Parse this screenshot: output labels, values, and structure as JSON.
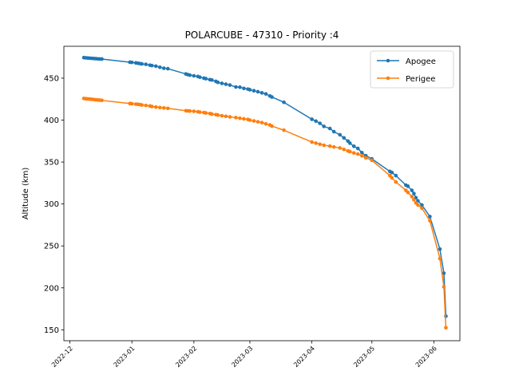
{
  "chart_data": {
    "type": "line",
    "title": "POLARCUBE - 47310 - Priority :4",
    "xlabel": "",
    "ylabel": "Altitude (km)",
    "xlim": [
      "2022-11-28",
      "2023-06-14"
    ],
    "ylim": [
      137,
      488
    ],
    "x_ticks": [
      "2022-12",
      "2023-01",
      "2023-02",
      "2023-03",
      "2023-04",
      "2023-05",
      "2023-06"
    ],
    "y_ticks": [
      150,
      200,
      250,
      300,
      350,
      400,
      450
    ],
    "grid": false,
    "legend_position": "top-right",
    "colors": {
      "Apogee": "#1f77b4",
      "Perigee": "#ff7f0e"
    },
    "series": [
      {
        "name": "Apogee",
        "points": [
          [
            "2022-12-08",
            474.5
          ],
          [
            "2022-12-09",
            474.2
          ],
          [
            "2022-12-10",
            474.0
          ],
          [
            "2022-12-11",
            473.8
          ],
          [
            "2022-12-12",
            473.6
          ],
          [
            "2022-12-13",
            473.4
          ],
          [
            "2022-12-14",
            473.2
          ],
          [
            "2022-12-15",
            473.0
          ],
          [
            "2022-12-16",
            472.9
          ],
          [
            "2022-12-17",
            472.8
          ],
          [
            "2022-12-31",
            469.0
          ],
          [
            "2023-01-01",
            468.8
          ],
          [
            "2023-01-03",
            468.2
          ],
          [
            "2023-01-04",
            467.8
          ],
          [
            "2023-01-05",
            467.4
          ],
          [
            "2023-01-06",
            467.0
          ],
          [
            "2023-01-08",
            466.5
          ],
          [
            "2023-01-10",
            465.5
          ],
          [
            "2023-01-11",
            465.0
          ],
          [
            "2023-01-13",
            464.3
          ],
          [
            "2023-01-15",
            463.0
          ],
          [
            "2023-01-17",
            461.8
          ],
          [
            "2023-01-19",
            461.3
          ],
          [
            "2023-01-28",
            455.0
          ],
          [
            "2023-01-29",
            454.2
          ],
          [
            "2023-01-30",
            453.6
          ],
          [
            "2023-02-01",
            452.8
          ],
          [
            "2023-02-03",
            452.0
          ],
          [
            "2023-02-04",
            451.2
          ],
          [
            "2023-02-06",
            450.0
          ],
          [
            "2023-02-07",
            449.4
          ],
          [
            "2023-02-09",
            448.2
          ],
          [
            "2023-02-10",
            447.8
          ],
          [
            "2023-02-12",
            446.2
          ],
          [
            "2023-02-13",
            445.0
          ],
          [
            "2023-02-15",
            443.8
          ],
          [
            "2023-02-17",
            442.8
          ],
          [
            "2023-02-19",
            441.8
          ],
          [
            "2023-02-22",
            439.5
          ],
          [
            "2023-02-24",
            439.2
          ],
          [
            "2023-02-26",
            437.8
          ],
          [
            "2023-02-28",
            437.0
          ],
          [
            "2023-03-01",
            436.2
          ],
          [
            "2023-03-03",
            435.0
          ],
          [
            "2023-03-05",
            433.8
          ],
          [
            "2023-03-07",
            432.5
          ],
          [
            "2023-03-09",
            431.2
          ],
          [
            "2023-03-11",
            428.8
          ],
          [
            "2023-03-12",
            427.5
          ],
          [
            "2023-03-18",
            421.2
          ],
          [
            "2023-04-01",
            401.0
          ],
          [
            "2023-04-03",
            398.8
          ],
          [
            "2023-04-05",
            396.2
          ],
          [
            "2023-04-07",
            392.5
          ],
          [
            "2023-04-10",
            390.0
          ],
          [
            "2023-04-12",
            386.2
          ],
          [
            "2023-04-15",
            382.5
          ],
          [
            "2023-04-17",
            378.8
          ],
          [
            "2023-04-19",
            375.0
          ],
          [
            "2023-04-20",
            372.5
          ],
          [
            "2023-04-22",
            368.8
          ],
          [
            "2023-04-24",
            366.2
          ],
          [
            "2023-04-26",
            361.2
          ],
          [
            "2023-04-28",
            357.5
          ],
          [
            "2023-05-01",
            353.8
          ],
          [
            "2023-05-10",
            338.8
          ],
          [
            "2023-05-11",
            337.5
          ],
          [
            "2023-05-13",
            333.8
          ],
          [
            "2023-05-18",
            322.5
          ],
          [
            "2023-05-19",
            321.2
          ],
          [
            "2023-05-21",
            316.2
          ],
          [
            "2023-05-22",
            312.5
          ],
          [
            "2023-05-23",
            307.5
          ],
          [
            "2023-05-24",
            303.8
          ],
          [
            "2023-05-26",
            298.8
          ],
          [
            "2023-05-30",
            285.0
          ],
          [
            "2023-06-04",
            246.2
          ],
          [
            "2023-06-06",
            217.5
          ],
          [
            "2023-06-07",
            166.2
          ]
        ]
      },
      {
        "name": "Perigee",
        "points": [
          [
            "2022-12-08",
            425.8
          ],
          [
            "2022-12-09",
            425.5
          ],
          [
            "2022-12-10",
            425.2
          ],
          [
            "2022-12-11",
            425.0
          ],
          [
            "2022-12-12",
            424.8
          ],
          [
            "2022-12-13",
            424.5
          ],
          [
            "2022-12-14",
            424.2
          ],
          [
            "2022-12-15",
            424.0
          ],
          [
            "2022-12-16",
            423.8
          ],
          [
            "2022-12-17",
            423.5
          ],
          [
            "2022-12-31",
            419.8
          ],
          [
            "2023-01-01",
            419.5
          ],
          [
            "2023-01-03",
            419.0
          ],
          [
            "2023-01-04",
            418.8
          ],
          [
            "2023-01-05",
            418.5
          ],
          [
            "2023-01-06",
            418.0
          ],
          [
            "2023-01-08",
            417.5
          ],
          [
            "2023-01-10",
            416.8
          ],
          [
            "2023-01-11",
            416.2
          ],
          [
            "2023-01-13",
            415.5
          ],
          [
            "2023-01-15",
            415.0
          ],
          [
            "2023-01-17",
            414.5
          ],
          [
            "2023-01-19",
            414.0
          ],
          [
            "2023-01-28",
            411.2
          ],
          [
            "2023-01-29",
            411.0
          ],
          [
            "2023-01-30",
            410.8
          ],
          [
            "2023-02-01",
            410.5
          ],
          [
            "2023-02-03",
            410.0
          ],
          [
            "2023-02-04",
            409.5
          ],
          [
            "2023-02-06",
            409.0
          ],
          [
            "2023-02-07",
            408.5
          ],
          [
            "2023-02-09",
            407.8
          ],
          [
            "2023-02-10",
            407.2
          ],
          [
            "2023-02-12",
            406.5
          ],
          [
            "2023-02-13",
            406.0
          ],
          [
            "2023-02-15",
            405.2
          ],
          [
            "2023-02-17",
            404.5
          ],
          [
            "2023-02-19",
            403.8
          ],
          [
            "2023-02-22",
            403.0
          ],
          [
            "2023-02-24",
            402.2
          ],
          [
            "2023-02-26",
            401.5
          ],
          [
            "2023-02-28",
            400.8
          ],
          [
            "2023-03-01",
            400.0
          ],
          [
            "2023-03-03",
            399.0
          ],
          [
            "2023-03-05",
            398.0
          ],
          [
            "2023-03-07",
            397.0
          ],
          [
            "2023-03-09",
            395.5
          ],
          [
            "2023-03-11",
            394.2
          ],
          [
            "2023-03-12",
            392.8
          ],
          [
            "2023-03-18",
            388.0
          ],
          [
            "2023-04-01",
            373.8
          ],
          [
            "2023-04-03",
            372.5
          ],
          [
            "2023-04-05",
            371.2
          ],
          [
            "2023-04-07",
            370.0
          ],
          [
            "2023-04-10",
            369.0
          ],
          [
            "2023-04-12",
            368.0
          ],
          [
            "2023-04-15",
            366.8
          ],
          [
            "2023-04-17",
            365.0
          ],
          [
            "2023-04-19",
            363.2
          ],
          [
            "2023-04-20",
            362.5
          ],
          [
            "2023-04-22",
            360.8
          ],
          [
            "2023-04-24",
            359.5
          ],
          [
            "2023-04-26",
            357.5
          ],
          [
            "2023-04-28",
            355.0
          ],
          [
            "2023-05-01",
            352.0
          ],
          [
            "2023-05-10",
            333.8
          ],
          [
            "2023-05-11",
            331.2
          ],
          [
            "2023-05-13",
            326.2
          ],
          [
            "2023-05-18",
            316.2
          ],
          [
            "2023-05-19",
            313.8
          ],
          [
            "2023-05-21",
            308.8
          ],
          [
            "2023-05-22",
            305.0
          ],
          [
            "2023-05-23",
            301.2
          ],
          [
            "2023-05-24",
            298.8
          ],
          [
            "2023-05-26",
            295.0
          ],
          [
            "2023-05-30",
            280.0
          ],
          [
            "2023-06-04",
            235.0
          ],
          [
            "2023-06-06",
            201.2
          ],
          [
            "2023-06-07",
            152.5
          ]
        ]
      }
    ]
  }
}
